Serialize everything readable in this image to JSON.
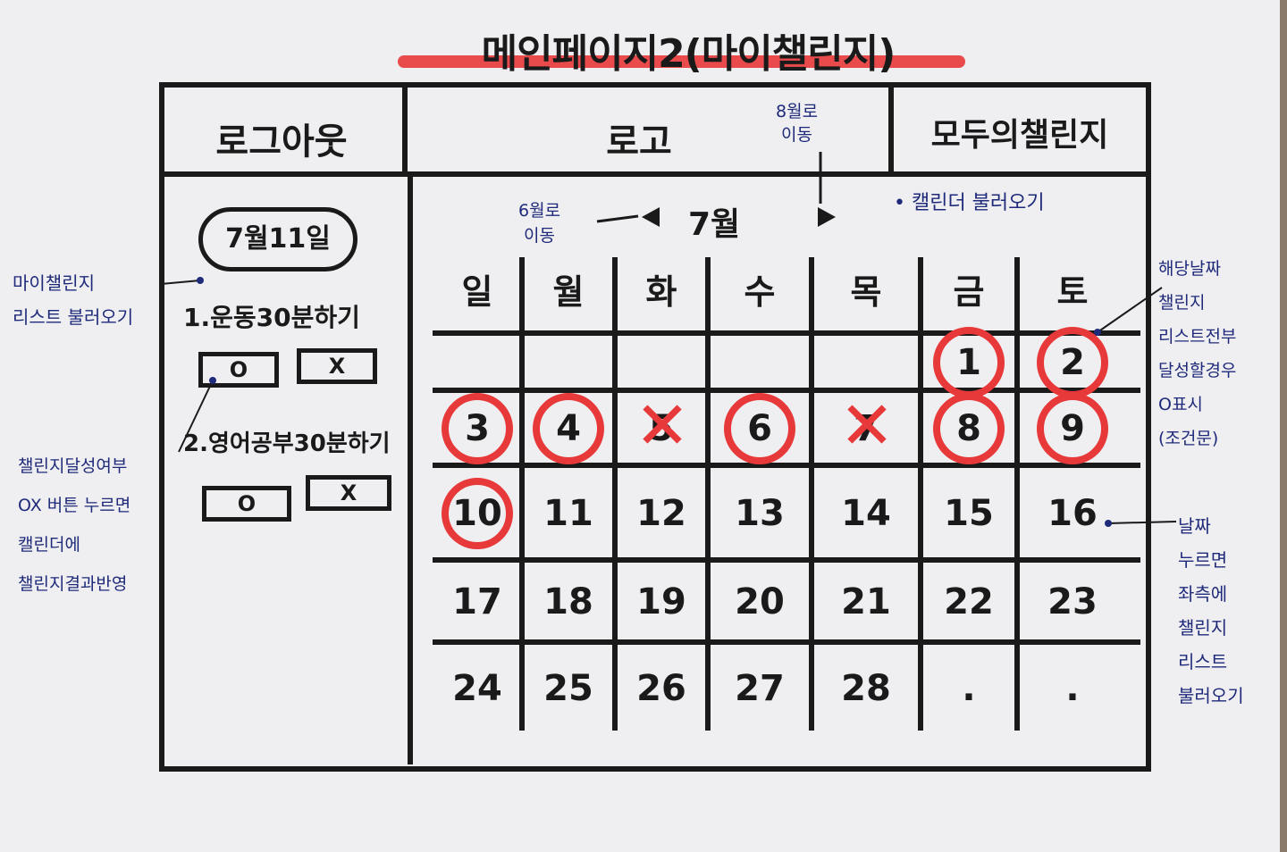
{
  "title": "메인페이지2(마이챌린지)",
  "nav": {
    "logout": "로그아웃",
    "logo": "로고",
    "all_challenges": "모두의챌린지"
  },
  "sidebar": {
    "date": "7월11일",
    "tasks": [
      {
        "label": "1.운동30분하기",
        "o": "O",
        "x": "X"
      },
      {
        "label": "2.영어공부30분하기",
        "o": "O",
        "x": "X"
      }
    ]
  },
  "calendar": {
    "month": "7월",
    "weekdays": [
      "일",
      "월",
      "화",
      "수",
      "목",
      "금",
      "토"
    ],
    "weeks": [
      [
        "",
        "",
        "",
        "",
        "",
        "1",
        "2"
      ],
      [
        "3",
        "4",
        "5",
        "6",
        "7",
        "8",
        "9"
      ],
      [
        "10",
        "11",
        "12",
        "13",
        "14",
        "15",
        "16"
      ],
      [
        "17",
        "18",
        "19",
        "20",
        "21",
        "22",
        "23"
      ],
      [
        "24",
        "25",
        "26",
        "27",
        "28",
        ".",
        "."
      ]
    ],
    "achieved_days": [
      "1",
      "2",
      "3",
      "4",
      "6",
      "8",
      "9",
      "10"
    ],
    "failed_days": [
      "5",
      "7"
    ]
  },
  "annotations": {
    "next_month": [
      "8월로",
      "이동"
    ],
    "prev_month": [
      "6월로",
      "이동"
    ],
    "load_calendar": "• 캘린더 불러오기",
    "load_list": [
      "마이챌린지",
      "리스트 불러오기"
    ],
    "ox_button": [
      "챌린지달성여부",
      "OX 버튼 누르면",
      "캘린더에",
      "챌린지결과반영"
    ],
    "all_done": [
      "해당날짜",
      "챌린지",
      "리스트전부",
      "달성할경우",
      "O표시",
      "(조건문)"
    ],
    "click_date": [
      "날짜",
      "누르면",
      "좌측에",
      "챌린지",
      "리스트",
      "불러오기"
    ]
  },
  "colors": {
    "ink": "#1a1a1a",
    "marker_red": "#e8393a",
    "pen_blue": "#1f2a7a",
    "paper": "#efeff1"
  }
}
